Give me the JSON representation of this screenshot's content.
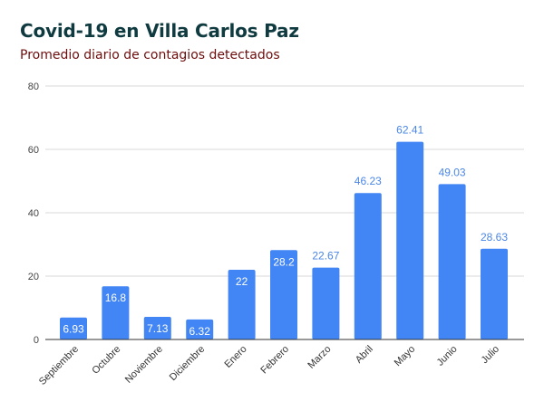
{
  "chart_data": {
    "type": "bar",
    "title": "Covid-19 en Villa Carlos Paz",
    "subtitle": "Promedio diario de contagios detectados",
    "xlabel": "",
    "ylabel": "",
    "categories": [
      "Septiembre",
      "Octubre",
      "Noviembre",
      "Diciembre",
      "Enero",
      "Febrero",
      "Marzo",
      "Abril",
      "Mayo",
      "Junio",
      "Julio"
    ],
    "values": [
      6.93,
      16.8,
      7.13,
      6.32,
      22,
      28.2,
      22.67,
      46.23,
      62.41,
      49.03,
      28.63
    ],
    "data_labels": [
      "6.93",
      "16.8",
      "7.13",
      "6.32",
      "22",
      "28.2",
      "22.67",
      "46.23",
      "62.41",
      "49.03",
      "28.63"
    ],
    "label_position": [
      "inside",
      "inside",
      "inside",
      "inside",
      "inside",
      "inside",
      "outside",
      "outside",
      "outside",
      "outside",
      "outside"
    ],
    "ylim": [
      0,
      80
    ],
    "yticks": [
      "0",
      "20",
      "40",
      "60",
      "80"
    ],
    "grid": true,
    "legend": "none",
    "colors": {
      "bar": "#4285f4",
      "label_outside": "#4a86e8",
      "label_inside": "#ffffff",
      "title": "#0f3b40",
      "subtitle": "#6d0d0d",
      "grid": "#d9d9d9",
      "axis": "#333333"
    }
  }
}
